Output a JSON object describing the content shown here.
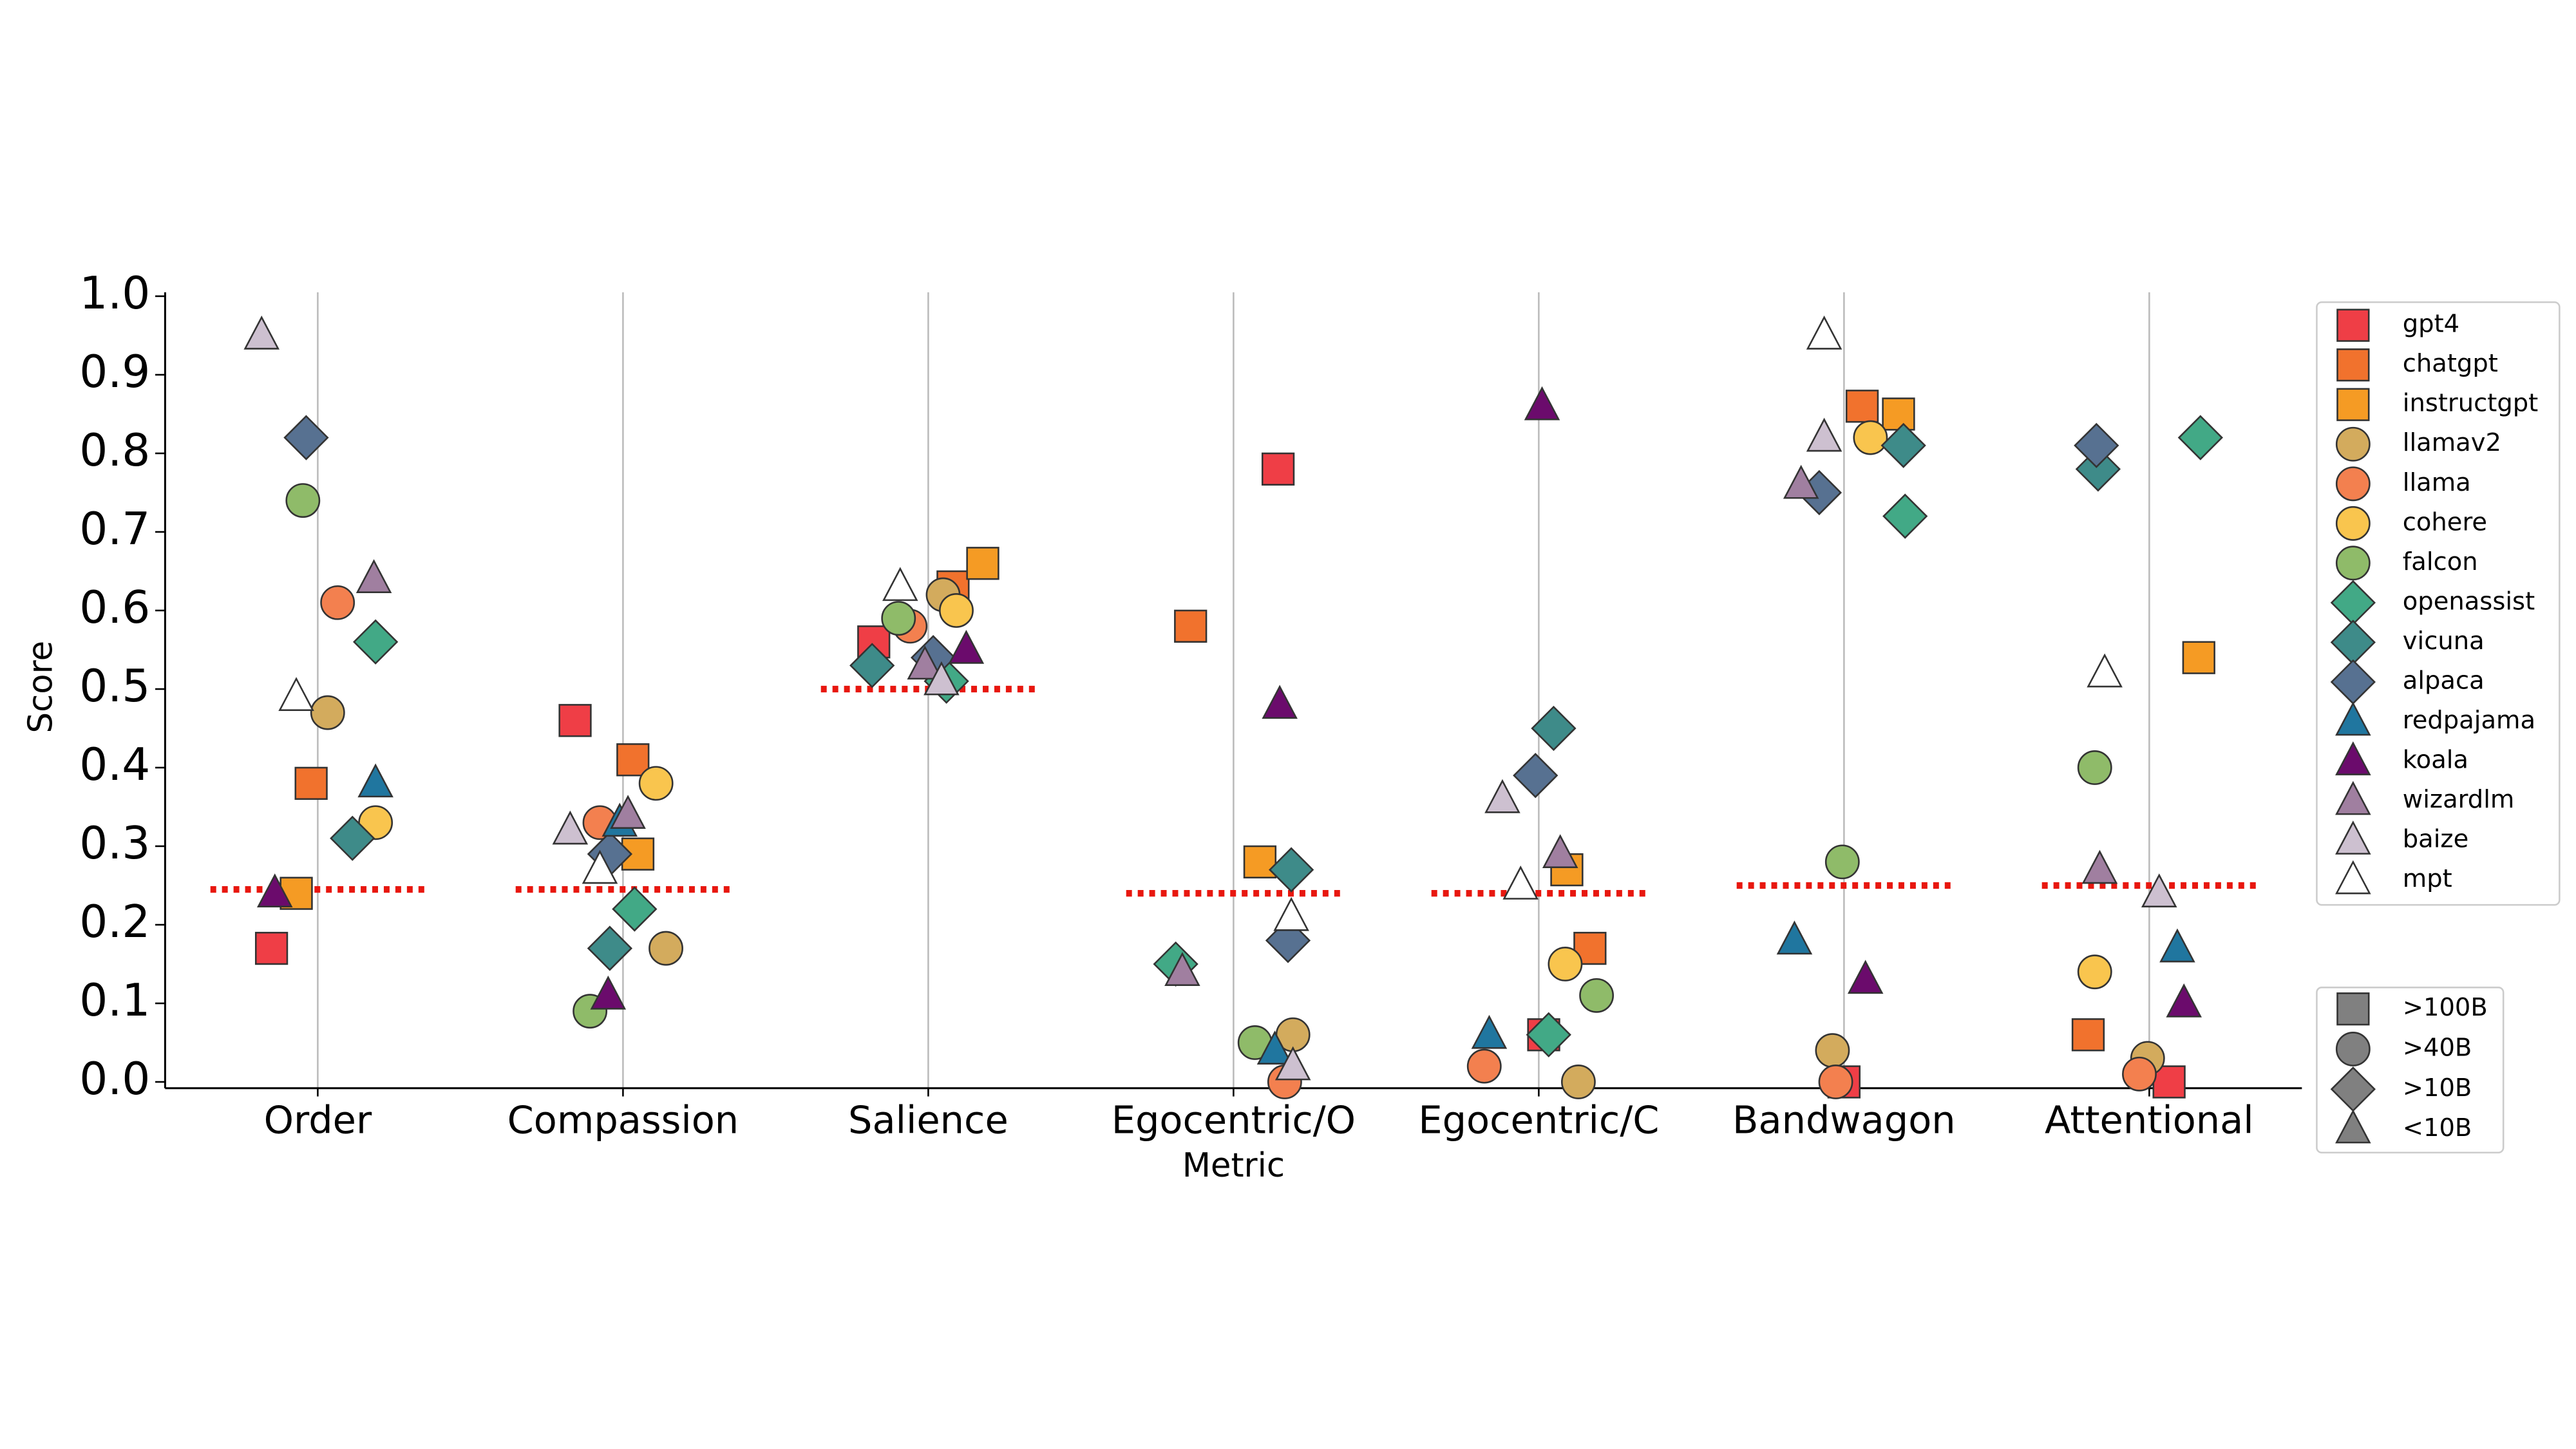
{
  "chart_data": {
    "type": "strip",
    "x_label": "Metric",
    "y_label": "Score",
    "categories": [
      "Order",
      "Compassion",
      "Salience",
      "Egocentric/O",
      "Egocentric/C",
      "Bandwagon",
      "Attentional"
    ],
    "ylim": [
      -0.008,
      1.005
    ],
    "yticks": [
      {
        "value": 0,
        "label": "0.0"
      },
      0.1,
      0.2,
      0.3,
      0.4,
      0.5,
      0.6,
      0.7,
      0.8,
      0.9,
      {
        "value": 1,
        "label": "1.0"
      }
    ],
    "grid_x": true,
    "reference_values": [
      0.245,
      0.245,
      0.5,
      0.24,
      0.24,
      0.25,
      0.25
    ],
    "reference_color": "#e8170f",
    "series": [
      {
        "name": "gpt4",
        "color": "#ef3e46",
        "marker": "square",
        "values": [
          0.17,
          0.46,
          0.56,
          0.78,
          0.06,
          0.0,
          0.0
        ]
      },
      {
        "name": "chatgpt",
        "color": "#f1722d",
        "marker": "square",
        "values": [
          0.38,
          0.41,
          0.63,
          0.58,
          0.17,
          0.86,
          0.06
        ]
      },
      {
        "name": "instructgpt",
        "color": "#f59b24",
        "marker": "square",
        "values": [
          0.24,
          0.29,
          0.66,
          0.28,
          0.27,
          0.85,
          0.54
        ]
      },
      {
        "name": "llamav2",
        "color": "#d3ab5d",
        "marker": "circle",
        "values": [
          0.47,
          0.17,
          0.62,
          0.06,
          0.0,
          0.04,
          0.03
        ]
      },
      {
        "name": "llama",
        "color": "#f3804f",
        "marker": "circle",
        "values": [
          0.61,
          0.33,
          0.58,
          0.0,
          0.02,
          0.0,
          0.01
        ]
      },
      {
        "name": "cohere",
        "color": "#f9c54e",
        "marker": "circle",
        "values": [
          0.33,
          0.38,
          0.6,
          null,
          0.15,
          0.82,
          0.14
        ]
      },
      {
        "name": "falcon",
        "color": "#8fbb69",
        "marker": "circle",
        "values": [
          0.74,
          0.09,
          0.59,
          0.05,
          0.11,
          0.28,
          0.4
        ]
      },
      {
        "name": "openassist",
        "color": "#42a986",
        "marker": "diamond",
        "values": [
          0.56,
          0.22,
          0.51,
          0.15,
          0.06,
          0.72,
          0.82
        ]
      },
      {
        "name": "vicuna",
        "color": "#3e8b89",
        "marker": "diamond",
        "values": [
          0.31,
          0.17,
          0.53,
          0.27,
          0.45,
          0.81,
          0.78
        ]
      },
      {
        "name": "alpaca",
        "color": "#577191",
        "marker": "diamond",
        "values": [
          0.82,
          0.29,
          0.54,
          0.18,
          0.39,
          0.75,
          0.81
        ]
      },
      {
        "name": "redpajama",
        "color": "#20769f",
        "marker": "triangle",
        "values": [
          0.38,
          0.33,
          null,
          0.04,
          0.06,
          0.18,
          0.17
        ]
      },
      {
        "name": "koala",
        "color": "#6b0b6c",
        "marker": "triangle",
        "values": [
          0.24,
          0.11,
          0.55,
          0.48,
          0.86,
          0.13,
          0.1
        ]
      },
      {
        "name": "wizardlm",
        "color": "#a07fa0",
        "marker": "triangle",
        "values": [
          0.64,
          0.34,
          0.53,
          0.14,
          0.29,
          0.76,
          0.27
        ]
      },
      {
        "name": "baize",
        "color": "#cdc0d0",
        "marker": "triangle",
        "values": [
          0.95,
          0.32,
          0.51,
          0.02,
          0.36,
          0.82,
          0.24
        ]
      },
      {
        "name": "mpt",
        "color": "#ffffff",
        "marker": "triangle",
        "values": [
          0.49,
          0.27,
          0.63,
          0.21,
          0.25,
          0.95,
          0.52
        ]
      }
    ],
    "marker_legend_color": "#808080",
    "marker_legend": [
      {
        "label": ">100B",
        "marker": "square"
      },
      {
        "label": ">40B",
        "marker": "circle"
      },
      {
        "label": ">10B",
        "marker": "diamond"
      },
      {
        "label": "<10B",
        "marker": "triangle"
      }
    ]
  }
}
